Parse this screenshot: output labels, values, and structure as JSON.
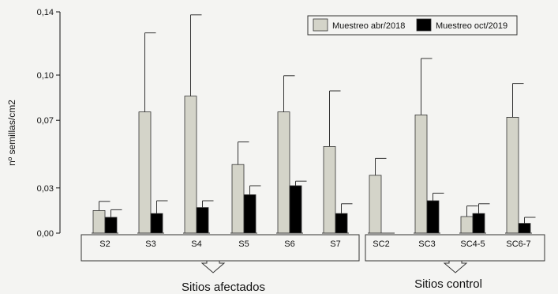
{
  "chart_data": {
    "type": "bar",
    "ylabel": "nº semillas/cm2",
    "ylim": [
      0,
      0.14
    ],
    "yticks": [
      {
        "value": 0.0,
        "label": "0,00"
      },
      {
        "value": 0.0286,
        "label": "0,03"
      },
      {
        "value": 0.0714,
        "label": "0,07"
      },
      {
        "value": 0.1,
        "label": "0,10"
      },
      {
        "value": 0.14,
        "label": "0,14"
      }
    ],
    "categories": [
      "S2",
      "S3",
      "S4",
      "S5",
      "S6",
      "S7",
      "SC2",
      "SC3",
      "SC4-5",
      "SC6-7"
    ],
    "series": [
      {
        "name": "Muestreo abr/2018",
        "color": "#d4d4c9",
        "values": [
          0.0143,
          0.0767,
          0.0867,
          0.0434,
          0.0767,
          0.0548,
          0.0366,
          0.0748,
          0.0105,
          0.0733
        ],
        "errors": [
          0.0058,
          0.05,
          0.0514,
          0.0143,
          0.0229,
          0.0352,
          0.0107,
          0.0357,
          0.0067,
          0.0214
        ]
      },
      {
        "name": "Muestreo oct/2019",
        "color": "#000000",
        "values": [
          0.01,
          0.0124,
          0.0162,
          0.0243,
          0.03,
          0.0124,
          0.0,
          0.0205,
          0.0124,
          0.0062
        ],
        "errors": [
          0.0048,
          0.0081,
          0.0043,
          0.0057,
          0.0029,
          0.0062,
          0.0,
          0.0048,
          0.0062,
          0.0038
        ]
      }
    ],
    "groups": [
      {
        "label": "Sitios afectados",
        "categories": [
          "S2",
          "S3",
          "S4",
          "S5",
          "S6",
          "S7"
        ]
      },
      {
        "label": "Sitios control",
        "categories": [
          "SC2",
          "SC3",
          "SC4-5",
          "SC6-7"
        ]
      }
    ],
    "legend_position": "top-right",
    "grid": false
  }
}
